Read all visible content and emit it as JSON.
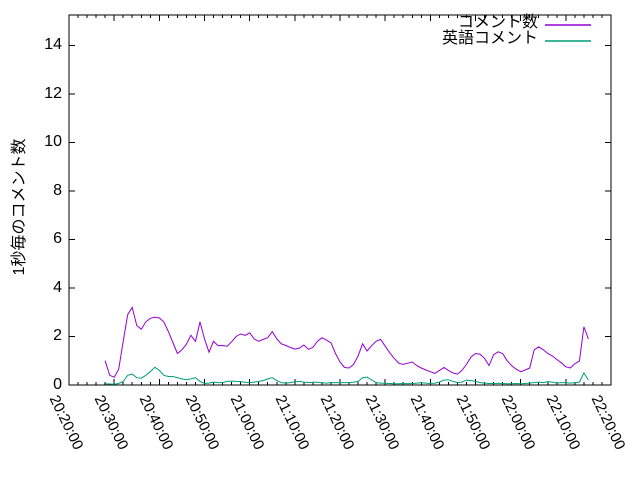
{
  "chart_data": {
    "type": "line",
    "title": "",
    "ylabel": "1秒毎のコメント数",
    "background_color": "#ffffff",
    "border_color": "#000000",
    "grid": false,
    "legend_position": "top-right-inside",
    "x_axis": {
      "start_label": "20:20:00",
      "end_label": "22:20:00",
      "total_minutes": 120,
      "major_tick_minutes": 10,
      "minor_tick_minutes": 2,
      "tick_labels": [
        "20:20:00",
        "20:30:00",
        "20:40:00",
        "20:50:00",
        "21:00:00",
        "21:10:00",
        "21:20:00",
        "21:30:00",
        "21:40:00",
        "21:50:00",
        "22:00:00",
        "22:10:00",
        "22:20:00"
      ]
    },
    "y_axis": {
      "min": 0,
      "max_tick": 14,
      "tick_step": 2,
      "top_value": 15.25,
      "tick_labels": [
        "0",
        "2",
        "4",
        "6",
        "8",
        "10",
        "12",
        "14"
      ]
    },
    "series": [
      {
        "name": "コメント数",
        "color": "#9400d3",
        "start_minute_after_axis_origin": 8,
        "step_minutes": 1,
        "values": [
          1.0,
          0.4,
          0.32,
          0.65,
          1.8,
          2.9,
          3.2,
          2.45,
          2.3,
          2.6,
          2.75,
          2.8,
          2.76,
          2.6,
          2.2,
          1.75,
          1.3,
          1.45,
          1.68,
          2.05,
          1.8,
          2.6,
          1.9,
          1.35,
          1.8,
          1.62,
          1.63,
          1.6,
          1.78,
          2.0,
          2.1,
          2.05,
          2.15,
          1.9,
          1.8,
          1.88,
          1.95,
          2.2,
          1.9,
          1.7,
          1.63,
          1.55,
          1.48,
          1.52,
          1.65,
          1.47,
          1.55,
          1.8,
          1.95,
          1.85,
          1.74,
          1.3,
          0.95,
          0.72,
          0.7,
          0.85,
          1.2,
          1.7,
          1.4,
          1.62,
          1.8,
          1.88,
          1.6,
          1.33,
          1.1,
          0.9,
          0.85,
          0.9,
          0.95,
          0.8,
          0.7,
          0.62,
          0.55,
          0.48,
          0.6,
          0.72,
          0.6,
          0.5,
          0.45,
          0.6,
          0.85,
          1.15,
          1.3,
          1.27,
          1.1,
          0.8,
          1.25,
          1.37,
          1.3,
          1.0,
          0.8,
          0.65,
          0.55,
          0.62,
          0.7,
          1.45,
          1.57,
          1.45,
          1.3,
          1.2,
          1.05,
          0.92,
          0.75,
          0.7,
          0.88,
          0.98,
          2.4,
          1.9
        ]
      },
      {
        "name": "英語コメント",
        "color": "#009e73",
        "start_minute_after_axis_origin": 8,
        "step_minutes": 1,
        "values": [
          0.05,
          0.04,
          0.03,
          0.06,
          0.15,
          0.4,
          0.45,
          0.3,
          0.28,
          0.4,
          0.55,
          0.73,
          0.6,
          0.4,
          0.35,
          0.35,
          0.3,
          0.25,
          0.22,
          0.25,
          0.3,
          0.15,
          0.06,
          0.08,
          0.12,
          0.1,
          0.1,
          0.15,
          0.16,
          0.15,
          0.14,
          0.11,
          0.1,
          0.12,
          0.15,
          0.18,
          0.25,
          0.3,
          0.18,
          0.1,
          0.08,
          0.1,
          0.13,
          0.15,
          0.12,
          0.1,
          0.11,
          0.11,
          0.09,
          0.08,
          0.1,
          0.1,
          0.09,
          0.1,
          0.1,
          0.12,
          0.15,
          0.3,
          0.33,
          0.2,
          0.1,
          0.08,
          0.07,
          0.06,
          0.05,
          0.05,
          0.06,
          0.05,
          0.06,
          0.08,
          0.1,
          0.08,
          0.06,
          0.08,
          0.12,
          0.2,
          0.22,
          0.15,
          0.1,
          0.12,
          0.2,
          0.18,
          0.15,
          0.1,
          0.08,
          0.06,
          0.06,
          0.07,
          0.06,
          0.05,
          0.05,
          0.06,
          0.05,
          0.06,
          0.08,
          0.1,
          0.12,
          0.1,
          0.14,
          0.12,
          0.08,
          0.1,
          0.1,
          0.08,
          0.1,
          0.12,
          0.5,
          0.2
        ]
      }
    ]
  }
}
